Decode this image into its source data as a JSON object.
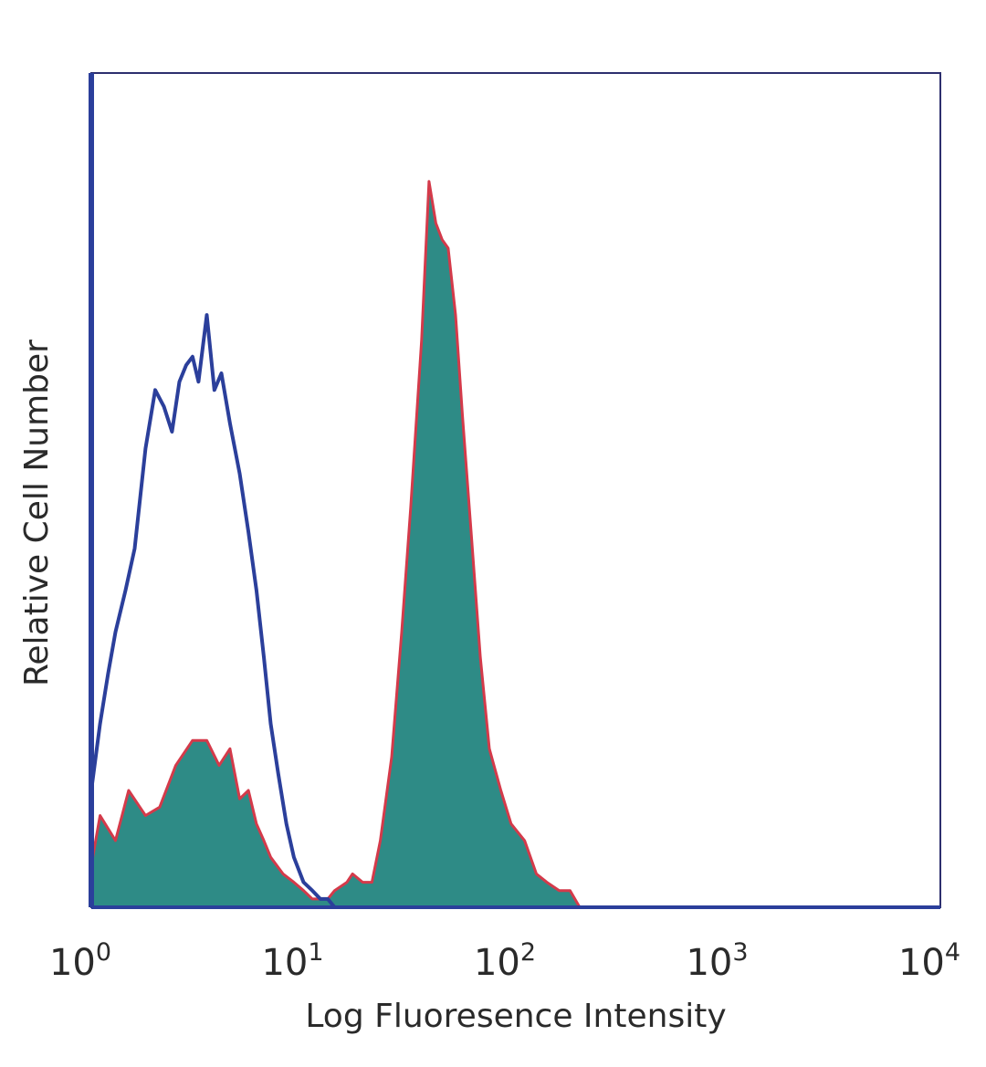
{
  "chart_data": {
    "type": "area",
    "title": "",
    "xlabel": "Log Fluoresence Intensity",
    "ylabel": "Relative Cell Number",
    "x_scale": "log",
    "xlim": [
      1,
      10000
    ],
    "ylim": [
      0,
      100
    ],
    "grid": false,
    "legend": "none",
    "x_ticks": [
      {
        "value": 1,
        "base": "10",
        "exp": "0"
      },
      {
        "value": 10,
        "base": "10",
        "exp": "1"
      },
      {
        "value": 100,
        "base": "10",
        "exp": "2"
      },
      {
        "value": 1000,
        "base": "10",
        "exp": "3"
      },
      {
        "value": 10000,
        "base": "10",
        "exp": "4"
      }
    ],
    "series": [
      {
        "style": "outline",
        "color": "#2b3f9b",
        "x": [
          1,
          1.1,
          1.2,
          1.3,
          1.45,
          1.6,
          1.8,
          2,
          2.2,
          2.4,
          2.6,
          2.8,
          3.0,
          3.2,
          3.5,
          3.8,
          4.1,
          4.5,
          5,
          5.5,
          6,
          6.5,
          7,
          7.6,
          8.3,
          9,
          10,
          11,
          12,
          13,
          14
        ],
        "y": [
          14,
          22,
          28,
          33,
          38,
          43,
          55,
          62,
          60,
          57,
          63,
          65,
          66,
          63,
          71,
          62,
          64,
          58,
          52,
          45,
          38,
          30,
          22,
          16,
          10,
          6,
          3,
          2,
          1,
          1,
          0
        ]
      },
      {
        "style": "filled",
        "color": "#2e8b86",
        "outline_color": "#d43a4a",
        "x": [
          1,
          1.1,
          1.3,
          1.5,
          1.8,
          2.1,
          2.5,
          3,
          3.5,
          4,
          4.5,
          5,
          5.5,
          6,
          6.5,
          7,
          8,
          9,
          10,
          11,
          12,
          13,
          14,
          16,
          17,
          19,
          21,
          23,
          26,
          29,
          32,
          36,
          39,
          42,
          45,
          48,
          52,
          56,
          62,
          68,
          75,
          85,
          95,
          110,
          125,
          140,
          160,
          180,
          200
        ],
        "y": [
          5,
          11,
          8,
          14,
          11,
          12,
          17,
          20,
          20,
          17,
          19,
          13,
          14,
          10,
          8,
          6,
          4,
          3,
          2,
          1,
          1,
          1,
          2,
          3,
          4,
          3,
          3,
          8,
          18,
          33,
          48,
          68,
          87,
          82,
          80,
          79,
          71,
          59,
          44,
          30,
          19,
          14,
          10,
          8,
          4,
          3,
          2,
          2,
          0
        ]
      }
    ]
  }
}
